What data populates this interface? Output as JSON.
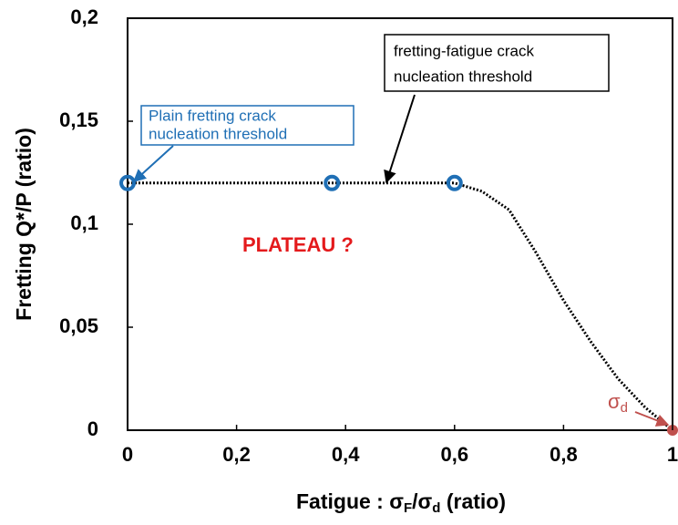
{
  "chart_data": {
    "type": "line",
    "xlabel_parts": [
      "Fatigue : σ",
      "F",
      "/σ",
      "d",
      " (ratio)"
    ],
    "ylabel": "Fretting Q*/P (ratio)",
    "xlim": [
      0,
      1
    ],
    "ylim": [
      0,
      0.2
    ],
    "xticks": [
      0,
      {
        "value": 0.2,
        "label": "0,2"
      },
      {
        "value": 0.4,
        "label": "0,4"
      },
      {
        "value": 0.6,
        "label": "0,6"
      },
      {
        "value": 0.8,
        "label": "0,8"
      },
      1
    ],
    "yticks": [
      0,
      {
        "value": 0.05,
        "label": "0,05"
      },
      {
        "value": 0.1,
        "label": "0,1"
      },
      {
        "value": 0.15,
        "label": "0,15"
      },
      {
        "value": 0.2,
        "label": "0,2"
      }
    ],
    "series": [
      {
        "style": "dotted",
        "color": "#000000",
        "x": [
          0,
          0.6,
          0.65,
          0.7,
          0.75,
          0.8,
          0.85,
          0.9,
          0.95,
          1
        ],
        "values": [
          0.12,
          0.12,
          0.116,
          0.107,
          0.086,
          0.063,
          0.043,
          0.025,
          0.011,
          0
        ]
      },
      {
        "style": "circles",
        "color": "#1f6fb5",
        "x": [
          0,
          0.375,
          0.6
        ],
        "values": [
          0.12,
          0.12,
          0.12
        ]
      },
      {
        "style": "dot",
        "color": "#c0504d",
        "x": [
          1
        ],
        "values": [
          0
        ]
      }
    ],
    "annotations": {
      "plain": [
        "Plain fretting crack",
        "nucleation threshold"
      ],
      "fretting_fatigue": [
        "fretting-fatigue crack",
        "nucleation threshold"
      ],
      "plateau": "PLATEAU ?",
      "sigma_d": [
        "σ",
        "d"
      ]
    }
  }
}
